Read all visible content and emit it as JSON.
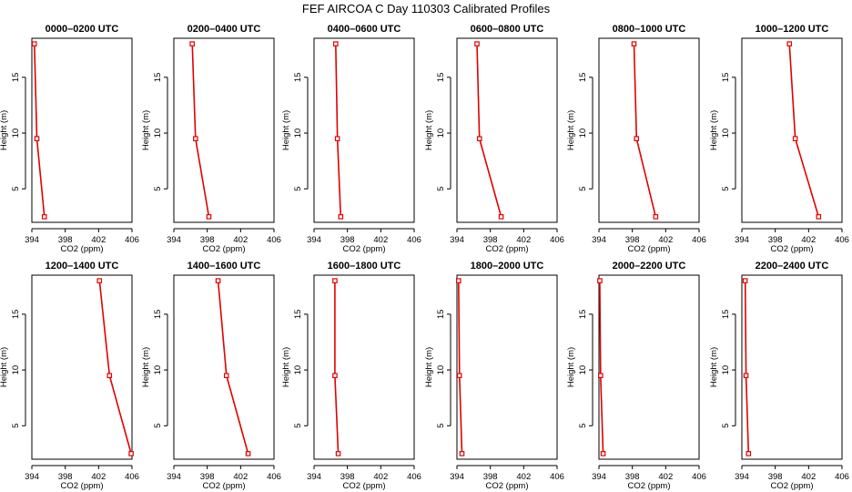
{
  "title": "FEF AIRCOA C  Day 110303  Calibrated Profiles",
  "chart_data": {
    "type": "line",
    "xlabel": "CO2 (ppm)",
    "ylabel": "Height (m)",
    "xlim": [
      394,
      406
    ],
    "ylim": [
      2,
      18.5
    ],
    "xticks": [
      394,
      398,
      402,
      406
    ],
    "yticks": [
      5,
      10,
      15
    ],
    "heights": [
      18,
      9.5,
      2.5
    ],
    "panels": [
      {
        "title": "0000–0200 UTC",
        "values": [
          394.3,
          394.6,
          395.5
        ]
      },
      {
        "title": "0200–0400 UTC",
        "values": [
          396.2,
          396.6,
          398.2
        ]
      },
      {
        "title": "0400–0600 UTC",
        "values": [
          396.6,
          396.8,
          397.2
        ]
      },
      {
        "title": "0600–0800 UTC",
        "values": [
          396.4,
          396.7,
          399.3
        ]
      },
      {
        "title": "0800–1000 UTC",
        "values": [
          398.2,
          398.5,
          400.8
        ]
      },
      {
        "title": "1000–1200 UTC",
        "values": [
          399.7,
          400.4,
          403.2
        ]
      },
      {
        "title": "1200–1400 UTC",
        "values": [
          402.1,
          403.3,
          405.9
        ]
      },
      {
        "title": "1400–1600 UTC",
        "values": [
          399.3,
          400.3,
          402.9
        ]
      },
      {
        "title": "1600–1800 UTC",
        "values": [
          396.5,
          396.5,
          396.9
        ]
      },
      {
        "title": "1800–2000 UTC",
        "values": [
          394.2,
          394.3,
          394.6
        ]
      },
      {
        "title": "2000–2200 UTC",
        "values": [
          394.1,
          394.2,
          394.5
        ]
      },
      {
        "title": "2200–2400 UTC",
        "values": [
          394.4,
          394.5,
          394.8
        ]
      }
    ]
  }
}
